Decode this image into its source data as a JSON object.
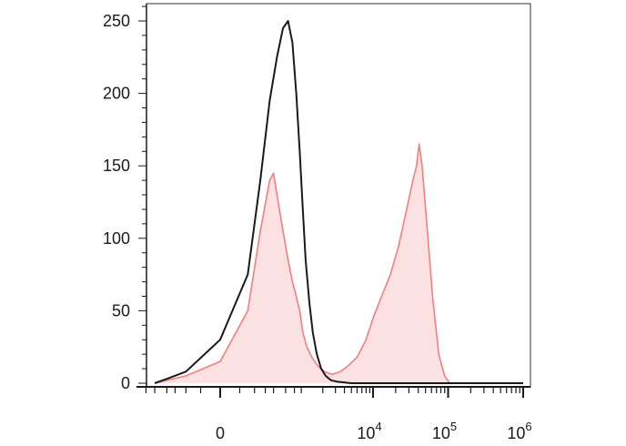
{
  "chart_data": {
    "type": "area",
    "title": "",
    "xlabel": "",
    "ylabel": "",
    "x_scale": "biexponential",
    "ylim": [
      0,
      260
    ],
    "y_ticks": [
      {
        "value": 0,
        "label": "0"
      },
      {
        "value": 50,
        "label": "50"
      },
      {
        "value": 100,
        "label": "100"
      },
      {
        "value": 150,
        "label": "150"
      },
      {
        "value": 200,
        "label": "200"
      },
      {
        "value": 250,
        "label": "250"
      }
    ],
    "x_ticks": [
      {
        "value": 0,
        "base": "0",
        "exp": ""
      },
      {
        "value": 10000,
        "base": "10",
        "exp": "4"
      },
      {
        "value": 100000,
        "base": "10",
        "exp": "5"
      },
      {
        "value": 1000000,
        "base": "10",
        "exp": "6"
      }
    ],
    "grid": false,
    "legend": "none",
    "series": [
      {
        "color": "#1a1a1a",
        "filled": false,
        "points": [
          [
            -600,
            0
          ],
          [
            -400,
            3
          ],
          [
            -200,
            8
          ],
          [
            0,
            30
          ],
          [
            150,
            75
          ],
          [
            250,
            140
          ],
          [
            350,
            195
          ],
          [
            450,
            225
          ],
          [
            550,
            245
          ],
          [
            650,
            250
          ],
          [
            750,
            235
          ],
          [
            850,
            200
          ],
          [
            950,
            160
          ],
          [
            1050,
            120
          ],
          [
            1150,
            85
          ],
          [
            1300,
            55
          ],
          [
            1450,
            35
          ],
          [
            1650,
            20
          ],
          [
            1900,
            10
          ],
          [
            2200,
            5
          ],
          [
            2600,
            2
          ],
          [
            3200,
            1
          ],
          [
            5000,
            0
          ],
          [
            20000,
            0
          ],
          [
            1000000,
            0
          ]
        ]
      },
      {
        "color": "#f08080",
        "filled": true,
        "fill": "#fbe1e1",
        "points": [
          [
            -600,
            0
          ],
          [
            -400,
            2
          ],
          [
            -200,
            5
          ],
          [
            0,
            15
          ],
          [
            150,
            50
          ],
          [
            250,
            105
          ],
          [
            350,
            140
          ],
          [
            400,
            145
          ],
          [
            450,
            130
          ],
          [
            550,
            105
          ],
          [
            650,
            85
          ],
          [
            750,
            70
          ],
          [
            850,
            60
          ],
          [
            950,
            50
          ],
          [
            1050,
            35
          ],
          [
            1200,
            25
          ],
          [
            1400,
            18
          ],
          [
            1700,
            12
          ],
          [
            2100,
            8
          ],
          [
            2700,
            6
          ],
          [
            3500,
            8
          ],
          [
            4500,
            12
          ],
          [
            6000,
            18
          ],
          [
            8000,
            30
          ],
          [
            10000,
            45
          ],
          [
            13000,
            60
          ],
          [
            17000,
            75
          ],
          [
            22000,
            95
          ],
          [
            28000,
            120
          ],
          [
            34000,
            140
          ],
          [
            38000,
            150
          ],
          [
            41000,
            165
          ],
          [
            45000,
            150
          ],
          [
            52000,
            110
          ],
          [
            62000,
            60
          ],
          [
            75000,
            20
          ],
          [
            90000,
            5
          ],
          [
            105000,
            0
          ],
          [
            1000000,
            0
          ]
        ]
      }
    ]
  }
}
